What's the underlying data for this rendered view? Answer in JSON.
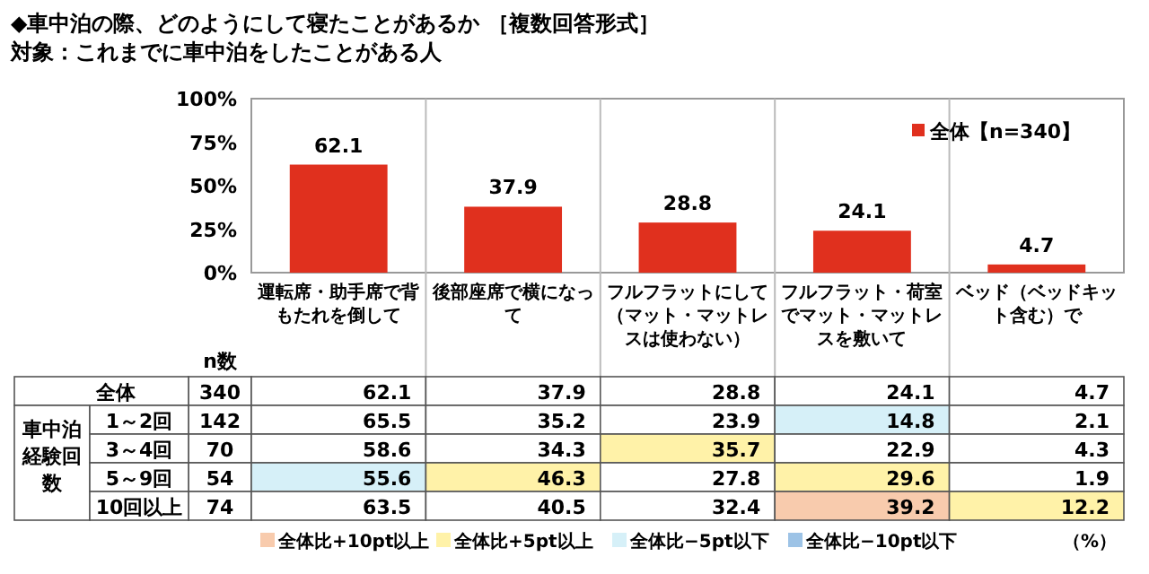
{
  "chart_data": [
    {
      "type": "bar",
      "title": "◆車中泊の際、どのようにして寝たことがあるか ［複数回答形式］",
      "subtitle": "対象：これまでに車中泊をしたことがある人",
      "categories": [
        null,
        null,
        null,
        null,
        null
      ],
      "series": [
        {
          "name": "全体【n=340】",
          "color": "#e0301e",
          "values": [
            62.1,
            37.9,
            28.8,
            24.1,
            4.7
          ],
          "value_labels": [
            "62.1",
            "37.9",
            "28.8",
            "24.1",
            "4.7"
          ]
        }
      ],
      "ylim": [
        0,
        100
      ],
      "yticks": [
        {
          "value": 0,
          "label": "0%"
        },
        {
          "value": 25,
          "label": "25%"
        },
        {
          "value": 50,
          "label": "50%"
        },
        {
          "value": 75,
          "label": "75%"
        },
        {
          "value": 100,
          "label": "100%"
        }
      ],
      "tick_labels": "y",
      "legend": "top right"
    },
    {
      "type": "heatmap",
      "ylabel": "車中泊経験回数",
      "categories": [
        "n数",
        "運転席・助手席で背もたれを倒して",
        "後部座席で横になって",
        "フルフラットにして（マット・マットレスは使わない）",
        "フルフラット・荷室でマット・マットレスを敷いて",
        "ベッド（ベッドキット含む）で"
      ],
      "y_categories": [
        "全体",
        "1～2回",
        "3～4回",
        "5～9回",
        "10回以上"
      ],
      "cells": [
        [
          340,
          62.1,
          37.9,
          28.8,
          24.1,
          4.7
        ],
        [
          142,
          65.5,
          35.2,
          23.9,
          14.8,
          2.1
        ],
        [
          70,
          58.6,
          34.3,
          35.7,
          22.9,
          4.3
        ],
        [
          54,
          55.6,
          46.3,
          27.8,
          29.6,
          1.9
        ],
        [
          74,
          63.5,
          40.5,
          32.4,
          39.2,
          12.2
        ]
      ],
      "data_labels": true,
      "annotations": [
        "全体比+10pt以上",
        "全体比+5pt以上",
        "全体比−5pt以下",
        "全体比−10pt以下",
        "（%）"
      ]
    }
  ]
}
